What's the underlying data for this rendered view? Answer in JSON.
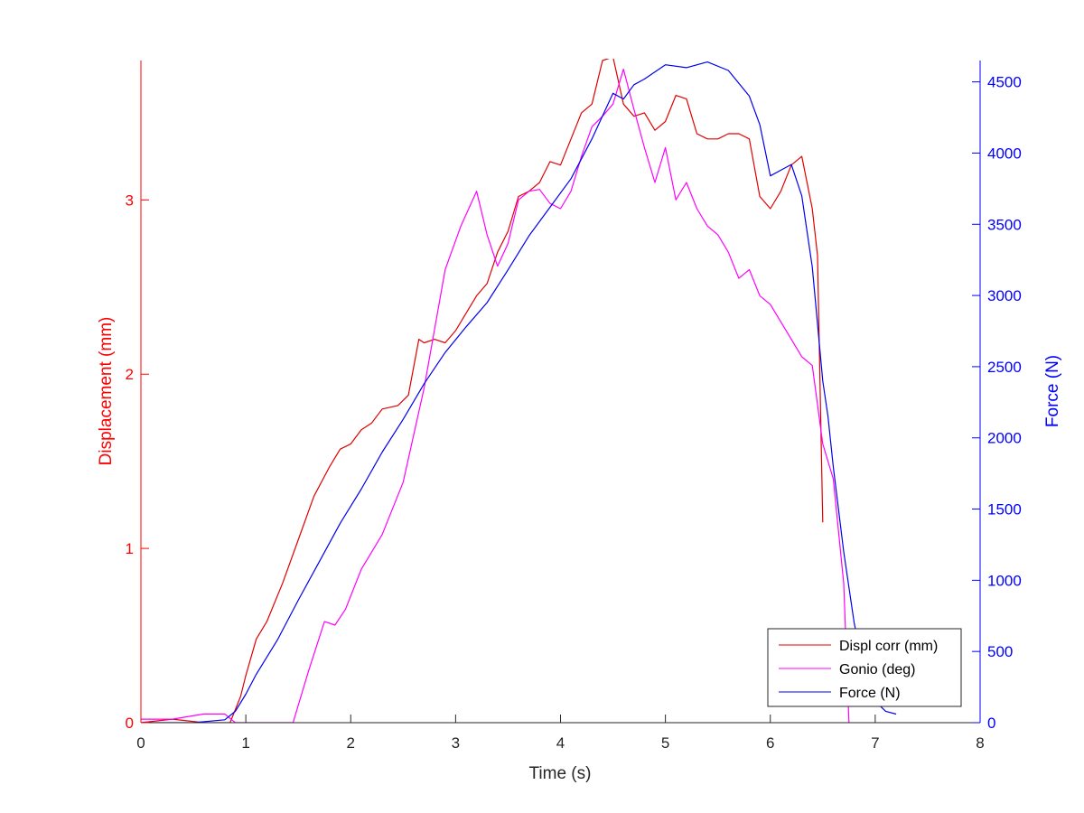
{
  "chart_data": {
    "type": "line",
    "xlabel": "Time (s)",
    "ylabel_left": "Displacement (mm)",
    "ylabel_right": "Force (N)",
    "xlim": [
      0,
      8
    ],
    "ylim_left": [
      0,
      3.8
    ],
    "ylim_right": [
      0,
      4650
    ],
    "xticks": [
      0,
      1,
      2,
      3,
      4,
      5,
      6,
      7,
      8
    ],
    "yticks_left": [
      0,
      1,
      2,
      3
    ],
    "yticks_right": [
      0,
      500,
      1000,
      1500,
      2000,
      2500,
      3000,
      3500,
      4000,
      4500
    ],
    "grid": false,
    "legend_position": "bottom-right",
    "colors": {
      "left_axis": "#ff0000",
      "right_axis": "#0000ff",
      "x_axis": "#262626"
    },
    "series": [
      {
        "name": "Displ corr (mm)",
        "axis": "left",
        "color": "#e00000",
        "x": [
          0,
          0.3,
          0.6,
          0.85,
          0.95,
          1.0,
          1.1,
          1.2,
          1.35,
          1.5,
          1.65,
          1.8,
          1.9,
          2.0,
          2.1,
          2.2,
          2.3,
          2.45,
          2.55,
          2.65,
          2.7,
          2.8,
          2.9,
          3.0,
          3.1,
          3.2,
          3.3,
          3.4,
          3.5,
          3.6,
          3.7,
          3.8,
          3.9,
          4.0,
          4.1,
          4.2,
          4.3,
          4.4,
          4.5,
          4.6,
          4.7,
          4.8,
          4.9,
          5.0,
          5.1,
          5.2,
          5.3,
          5.4,
          5.5,
          5.6,
          5.7,
          5.8,
          5.9,
          6.0,
          6.1,
          6.2,
          6.3,
          6.4,
          6.45,
          6.5
        ],
        "y": [
          0,
          0.02,
          0,
          0,
          0.15,
          0.27,
          0.48,
          0.58,
          0.8,
          1.05,
          1.3,
          1.47,
          1.57,
          1.6,
          1.68,
          1.72,
          1.8,
          1.82,
          1.88,
          2.2,
          2.18,
          2.2,
          2.18,
          2.25,
          2.35,
          2.45,
          2.52,
          2.7,
          2.82,
          3.02,
          3.05,
          3.1,
          3.22,
          3.2,
          3.35,
          3.5,
          3.55,
          3.8,
          3.82,
          3.55,
          3.48,
          3.5,
          3.4,
          3.45,
          3.6,
          3.58,
          3.38,
          3.35,
          3.35,
          3.38,
          3.38,
          3.35,
          3.02,
          2.95,
          3.05,
          3.2,
          3.25,
          2.95,
          2.68,
          1.15
        ]
      },
      {
        "name": "Gonio (deg)",
        "axis": "left",
        "color": "#ff00ff",
        "x": [
          0,
          0.3,
          0.6,
          0.8,
          0.9,
          1.0,
          1.2,
          1.4,
          1.45,
          1.6,
          1.75,
          1.85,
          1.95,
          2.1,
          2.3,
          2.5,
          2.7,
          2.9,
          3.05,
          3.2,
          3.3,
          3.4,
          3.5,
          3.6,
          3.7,
          3.8,
          3.9,
          4.0,
          4.1,
          4.2,
          4.3,
          4.4,
          4.5,
          4.6,
          4.7,
          4.8,
          4.9,
          5.0,
          5.1,
          5.2,
          5.3,
          5.4,
          5.5,
          5.6,
          5.7,
          5.8,
          5.9,
          6.0,
          6.1,
          6.2,
          6.3,
          6.4,
          6.5,
          6.6,
          6.7,
          6.75
        ],
        "y": [
          0.02,
          0.02,
          0.05,
          0.05,
          0,
          0,
          0,
          0,
          0,
          0.3,
          0.58,
          0.56,
          0.65,
          0.88,
          1.08,
          1.38,
          1.92,
          2.6,
          2.85,
          3.05,
          2.8,
          2.62,
          2.75,
          3.0,
          3.05,
          3.06,
          2.98,
          2.95,
          3.05,
          3.25,
          3.42,
          3.48,
          3.55,
          3.75,
          3.52,
          3.3,
          3.1,
          3.3,
          3.0,
          3.1,
          2.95,
          2.85,
          2.8,
          2.7,
          2.55,
          2.6,
          2.45,
          2.4,
          2.3,
          2.2,
          2.1,
          2.05,
          1.6,
          1.4,
          0.8,
          0
        ]
      },
      {
        "name": "Force (N)",
        "axis": "right",
        "color": "#0000ee",
        "x": [
          0,
          0.5,
          0.8,
          0.9,
          1.0,
          1.1,
          1.3,
          1.5,
          1.7,
          1.9,
          2.1,
          2.3,
          2.5,
          2.7,
          2.9,
          3.1,
          3.3,
          3.5,
          3.7,
          3.9,
          4.1,
          4.3,
          4.5,
          4.6,
          4.7,
          4.8,
          5.0,
          5.2,
          5.4,
          5.6,
          5.8,
          5.9,
          6.0,
          6.1,
          6.2,
          6.3,
          6.4,
          6.5,
          6.55,
          6.6,
          6.7,
          6.8,
          6.9,
          7.0,
          7.1,
          7.2
        ],
        "y": [
          0,
          0,
          20,
          80,
          200,
          340,
          580,
          860,
          1130,
          1400,
          1640,
          1900,
          2130,
          2380,
          2600,
          2780,
          2950,
          3180,
          3420,
          3620,
          3820,
          4100,
          4420,
          4380,
          4480,
          4520,
          4620,
          4600,
          4640,
          4580,
          4400,
          4200,
          3840,
          3880,
          3920,
          3700,
          3200,
          2400,
          2150,
          1800,
          1200,
          700,
          350,
          150,
          80,
          60
        ]
      }
    ]
  }
}
